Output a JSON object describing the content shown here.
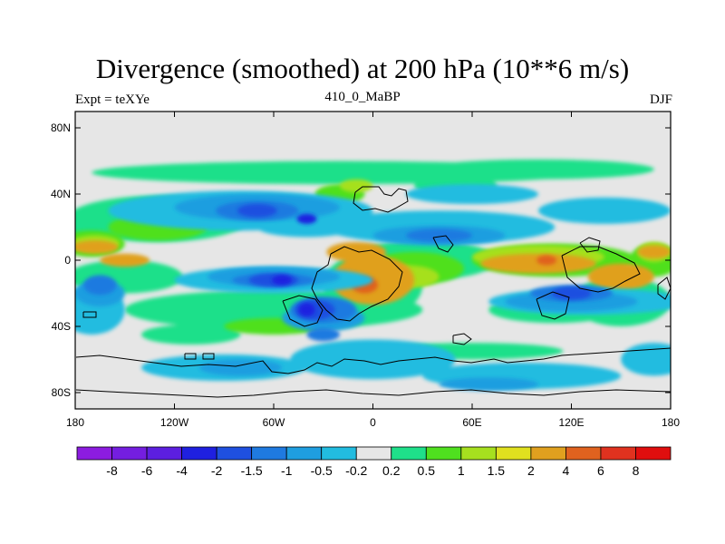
{
  "chart_data": {
    "type": "heatmap",
    "title": "Divergence (smoothed) at 200 hPa (10**6 m/s)",
    "subtitle_left": "Expt = teXYe",
    "subtitle_center": "410_0_MaBP",
    "subtitle_right": "DJF",
    "x_ticks": [
      "180",
      "120W",
      "60W",
      "0",
      "60E",
      "120E",
      "180"
    ],
    "x_range": [
      -180,
      180
    ],
    "y_ticks": [
      "80N",
      "40N",
      "0",
      "40S",
      "80S"
    ],
    "y_range": [
      -90,
      90
    ],
    "colorbar_levels": [
      "-8",
      "-6",
      "-4",
      "-2",
      "-1.5",
      "-1",
      "-0.5",
      "-0.2",
      "0.2",
      "0.5",
      "1",
      "1.5",
      "2",
      "4",
      "6",
      "8"
    ],
    "colorbar_colors": [
      "#8c1ce0",
      "#741ee0",
      "#5c1fe0",
      "#1f20e0",
      "#1f50e0",
      "#1f7ae0",
      "#1f9ee0",
      "#22bce0",
      "#e6e6e6",
      "#1fe08a",
      "#4fe01f",
      "#a6e01f",
      "#e0e01f",
      "#e0a01f",
      "#e0621f",
      "#e0321f",
      "#e00e0e"
    ],
    "background_color": "#e6e6e6",
    "contour_fields": [
      {
        "level": "0.5",
        "color": "#1fe08a",
        "blobs": [
          [
            -20,
            53,
            150,
            7
          ],
          [
            100,
            55,
            70,
            6
          ],
          [
            -130,
            25,
            55,
            14
          ],
          [
            30,
            0,
            45,
            12
          ],
          [
            -60,
            -30,
            90,
            12
          ],
          [
            150,
            -25,
            30,
            15
          ],
          [
            -110,
            -45,
            30,
            6
          ],
          [
            60,
            -55,
            55,
            5
          ],
          [
            110,
            -30,
            40,
            8
          ],
          [
            -170,
            20,
            20,
            10
          ],
          [
            -150,
            -10,
            35,
            10
          ],
          [
            50,
            45,
            25,
            6
          ],
          [
            0,
            -15,
            30,
            20
          ]
        ]
      },
      {
        "level": "1",
        "color": "#4fe01f",
        "blobs": [
          [
            -170,
            10,
            20,
            8
          ],
          [
            -130,
            20,
            30,
            8
          ],
          [
            25,
            -5,
            30,
            10
          ],
          [
            110,
            0,
            50,
            10
          ],
          [
            -20,
            40,
            15,
            6
          ],
          [
            -60,
            -40,
            30,
            5
          ],
          [
            170,
            0,
            15,
            10
          ]
        ]
      },
      {
        "level": "1.5",
        "color": "#a6e01f",
        "blobs": [
          [
            -168,
            10,
            15,
            5
          ],
          [
            20,
            -10,
            20,
            7
          ],
          [
            100,
            2,
            40,
            7
          ],
          [
            -10,
            45,
            10,
            4
          ],
          [
            170,
            5,
            10,
            6
          ]
        ]
      },
      {
        "level": "2",
        "color": "#e0a01f",
        "blobs": [
          [
            -168,
            8,
            14,
            4
          ],
          [
            0,
            -12,
            25,
            15
          ],
          [
            100,
            -2,
            35,
            6
          ],
          [
            -150,
            0,
            15,
            4
          ],
          [
            -10,
            5,
            18,
            6
          ],
          [
            150,
            -10,
            20,
            8
          ],
          [
            170,
            5,
            10,
            4
          ]
        ]
      },
      {
        "level": "4",
        "color": "#e0621f",
        "blobs": [
          [
            -5,
            -15,
            8,
            5
          ],
          [
            105,
            0,
            6,
            3
          ]
        ]
      },
      {
        "level": "-0.2",
        "color": "#22bce0",
        "blobs": [
          [
            -80,
            30,
            80,
            12
          ],
          [
            -60,
            -12,
            60,
            8
          ],
          [
            40,
            20,
            70,
            10
          ],
          [
            130,
            -25,
            60,
            8
          ],
          [
            -170,
            -30,
            20,
            15
          ],
          [
            -90,
            -65,
            50,
            8
          ],
          [
            0,
            -60,
            50,
            12
          ],
          [
            90,
            -70,
            60,
            8
          ],
          [
            170,
            -60,
            20,
            10
          ],
          [
            60,
            40,
            40,
            6
          ],
          [
            140,
            30,
            40,
            8
          ],
          [
            -40,
            20,
            30,
            6
          ]
        ]
      },
      {
        "level": "-0.5",
        "color": "#1f9ee0",
        "blobs": [
          [
            -70,
            32,
            50,
            8
          ],
          [
            -60,
            -10,
            40,
            6
          ],
          [
            40,
            15,
            40,
            6
          ],
          [
            120,
            -25,
            40,
            6
          ],
          [
            -30,
            -35,
            25,
            8
          ],
          [
            -80,
            -65,
            25,
            5
          ],
          [
            70,
            -75,
            30,
            4
          ],
          [
            -165,
            -20,
            15,
            8
          ]
        ]
      },
      {
        "level": "-1",
        "color": "#1f7ae0",
        "blobs": [
          [
            -70,
            30,
            25,
            6
          ],
          [
            -60,
            -12,
            25,
            4
          ],
          [
            -30,
            -30,
            20,
            8
          ],
          [
            120,
            -20,
            25,
            5
          ],
          [
            40,
            15,
            20,
            4
          ],
          [
            -165,
            -15,
            10,
            6
          ],
          [
            -30,
            -45,
            10,
            4
          ]
        ]
      },
      {
        "level": "-1.5",
        "color": "#1f50e0",
        "blobs": [
          [
            -60,
            -12,
            15,
            4
          ],
          [
            -35,
            -30,
            12,
            6
          ],
          [
            -70,
            30,
            12,
            4
          ],
          [
            120,
            -20,
            12,
            4
          ]
        ]
      },
      {
        "level": "-2",
        "color": "#1f20e0",
        "blobs": [
          [
            -40,
            -30,
            5,
            4
          ],
          [
            -55,
            -12,
            6,
            3
          ],
          [
            -40,
            25,
            6,
            3
          ]
        ]
      }
    ],
    "grid": false,
    "colorbar_position": "bottom"
  }
}
